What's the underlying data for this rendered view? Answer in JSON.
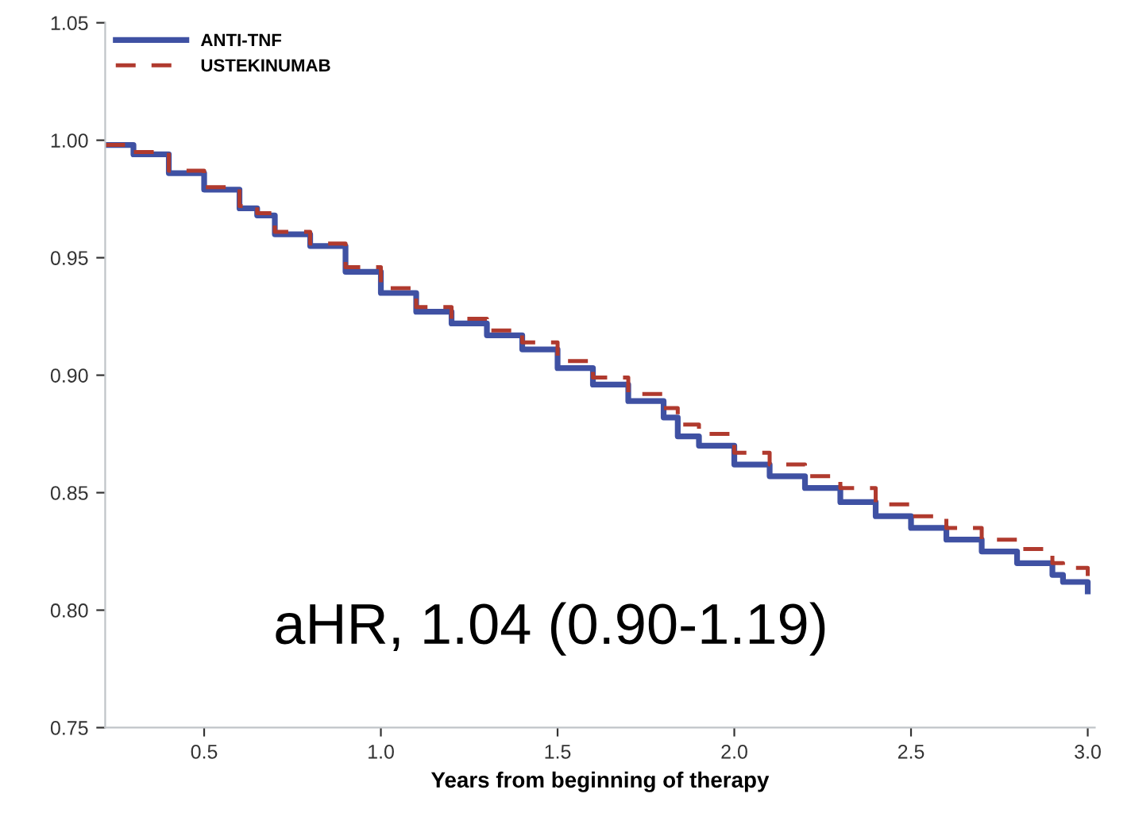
{
  "chart_data": {
    "type": "step",
    "xlabel": "Years from beginning of therapy",
    "annotations": [
      "aHR, 1.04 (0.90-1.19)"
    ],
    "xlim": [
      0.22,
      3.02
    ],
    "xticks": [
      {
        "value": 0.5,
        "label": "0.5"
      },
      {
        "value": 1.0,
        "label": "1.0"
      },
      {
        "value": 1.5,
        "label": "1.5"
      },
      {
        "value": 2.0,
        "label": "2.0"
      },
      {
        "value": 2.5,
        "label": "2.5"
      },
      {
        "value": 3.0,
        "label": "3.0"
      }
    ],
    "ylim": [
      0.75,
      1.05
    ],
    "yticks": [
      {
        "value": 0.75,
        "label": "0.75"
      },
      {
        "value": 0.8,
        "label": "0.80"
      },
      {
        "value": 0.85,
        "label": "0.85"
      },
      {
        "value": 0.9,
        "label": "0.90"
      },
      {
        "value": 0.95,
        "label": "0.95"
      },
      {
        "value": 1.0,
        "label": "1.00"
      },
      {
        "value": 1.05,
        "label": "1.05"
      }
    ],
    "x": [
      0.22,
      0.25,
      0.3,
      0.4,
      0.5,
      0.6,
      0.65,
      0.7,
      0.8,
      0.9,
      1.0,
      1.1,
      1.2,
      1.3,
      1.4,
      1.5,
      1.6,
      1.7,
      1.8,
      1.84,
      1.9,
      2.0,
      2.1,
      2.2,
      2.3,
      2.4,
      2.5,
      2.6,
      2.7,
      2.8,
      2.9,
      2.93,
      3.0
    ],
    "series": [
      {
        "name": "ANTI-TNF",
        "color": "#3f51a3",
        "line_style": "solid",
        "values": [
          0.998,
          0.998,
          0.994,
          0.986,
          0.979,
          0.971,
          0.968,
          0.96,
          0.955,
          0.944,
          0.935,
          0.927,
          0.922,
          0.917,
          0.911,
          0.903,
          0.896,
          0.889,
          0.882,
          0.874,
          0.87,
          0.862,
          0.857,
          0.852,
          0.846,
          0.84,
          0.835,
          0.83,
          0.825,
          0.82,
          0.815,
          0.812,
          0.808
        ]
      },
      {
        "name": "USTEKINUMAB",
        "color": "#b03a2e",
        "line_style": "dashed",
        "values": [
          0.998,
          0.998,
          0.995,
          0.987,
          0.98,
          0.972,
          0.969,
          0.961,
          0.956,
          0.946,
          0.937,
          0.929,
          0.924,
          0.919,
          0.914,
          0.906,
          0.899,
          0.892,
          0.886,
          0.879,
          0.875,
          0.867,
          0.862,
          0.857,
          0.852,
          0.845,
          0.84,
          0.835,
          0.83,
          0.826,
          0.82,
          0.818,
          0.814
        ]
      }
    ],
    "legend": "top left",
    "grid": false
  }
}
